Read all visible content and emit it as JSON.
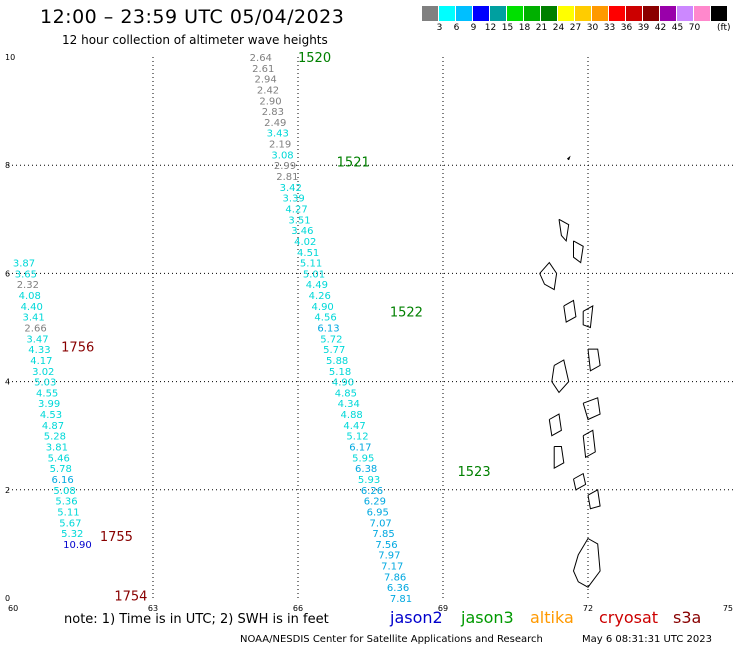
{
  "header": {
    "title": "12:00 – 23:59 UTC 05/04/2023",
    "subtitle": "12 hour collection of altimeter wave heights"
  },
  "color_scale": {
    "unit": "(ft)",
    "swatches": [
      {
        "color": "#808080",
        "label": ""
      },
      {
        "color": "#00ffff",
        "label": "3"
      },
      {
        "color": "#00bfff",
        "label": "6"
      },
      {
        "color": "#0000ff",
        "label": "9"
      },
      {
        "color": "#00a0a0",
        "label": "12"
      },
      {
        "color": "#00e000",
        "label": "15"
      },
      {
        "color": "#00b000",
        "label": "18"
      },
      {
        "color": "#008000",
        "label": "21"
      },
      {
        "color": "#ffff00",
        "label": "24"
      },
      {
        "color": "#ffcc00",
        "label": "27"
      },
      {
        "color": "#ff9900",
        "label": "30"
      },
      {
        "color": "#ff0000",
        "label": "33"
      },
      {
        "color": "#cc0000",
        "label": "36"
      },
      {
        "color": "#8b0000",
        "label": "39"
      },
      {
        "color": "#9900aa",
        "label": "42"
      },
      {
        "color": "#cc88ff",
        "label": "45"
      },
      {
        "color": "#ff88cc",
        "label": "70"
      },
      {
        "color": "#000000",
        "label": ""
      }
    ]
  },
  "footer": {
    "note": "note:  1) Time is in UTC;  2) SWH is in feet",
    "satellites": [
      {
        "name": "jason2",
        "color": "#0000cc"
      },
      {
        "name": "jason3",
        "color": "#009900"
      },
      {
        "name": "altika",
        "color": "#ff9900"
      },
      {
        "name": "cryosat",
        "color": "#cc0000"
      },
      {
        "name": "s3a",
        "color": "#880000"
      }
    ],
    "credit": "NOAA/NESDIS Center for Satellite Applications and Research",
    "generated": "May  6 08:31:31 UTC 2023"
  },
  "chart_data": {
    "type": "scatter",
    "title": "12:00 – 23:59 UTC 05/04/2023",
    "xlim": [
      60,
      75
    ],
    "ylim": [
      0,
      10
    ],
    "x_ticks": [
      "60",
      "63",
      "66",
      "69",
      "72",
      "75"
    ],
    "y_ticks": [
      "0",
      "2",
      "4",
      "6",
      "8",
      "10"
    ],
    "grid": true,
    "series": [
      {
        "name": "jason3",
        "color": "#008000",
        "time_labels": [
          {
            "text": "1520",
            "x": 66.0,
            "y": 10.0
          },
          {
            "text": "1521",
            "x": 66.8,
            "y": 8.07
          },
          {
            "text": "1522",
            "x": 67.9,
            "y": 5.3
          },
          {
            "text": "1523",
            "x": 69.3,
            "y": 2.35
          }
        ],
        "points": [
          {
            "v": "2.64",
            "x": 65.0,
            "y": 10.0,
            "c": "#808080"
          },
          {
            "v": "2.61",
            "x": 65.05,
            "y": 9.8,
            "c": "#808080"
          },
          {
            "v": "2.94",
            "x": 65.1,
            "y": 9.6,
            "c": "#808080"
          },
          {
            "v": "2.42",
            "x": 65.15,
            "y": 9.4,
            "c": "#808080"
          },
          {
            "v": "2.90",
            "x": 65.2,
            "y": 9.2,
            "c": "#808080"
          },
          {
            "v": "2.83",
            "x": 65.25,
            "y": 9.0,
            "c": "#808080"
          },
          {
            "v": "2.49",
            "x": 65.3,
            "y": 8.8,
            "c": "#808080"
          },
          {
            "v": "3.43",
            "x": 65.35,
            "y": 8.6,
            "c": "#00d8d8"
          },
          {
            "v": "2.19",
            "x": 65.4,
            "y": 8.4,
            "c": "#808080"
          },
          {
            "v": "3.08",
            "x": 65.45,
            "y": 8.2,
            "c": "#00d8d8"
          },
          {
            "v": "2.99",
            "x": 65.5,
            "y": 8.0,
            "c": "#808080"
          },
          {
            "v": "2.81",
            "x": 65.55,
            "y": 7.8,
            "c": "#808080"
          },
          {
            "v": "3.42",
            "x": 65.62,
            "y": 7.6,
            "c": "#00d8d8"
          },
          {
            "v": "3.39",
            "x": 65.68,
            "y": 7.4,
            "c": "#00d8d8"
          },
          {
            "v": "4.27",
            "x": 65.74,
            "y": 7.2,
            "c": "#00d8d8"
          },
          {
            "v": "3.51",
            "x": 65.8,
            "y": 7.0,
            "c": "#00d8d8"
          },
          {
            "v": "3.46",
            "x": 65.86,
            "y": 6.8,
            "c": "#00d8d8"
          },
          {
            "v": "4.02",
            "x": 65.92,
            "y": 6.6,
            "c": "#00d8d8"
          },
          {
            "v": "4.51",
            "x": 65.98,
            "y": 6.4,
            "c": "#00d8d8"
          },
          {
            "v": "5.11",
            "x": 66.04,
            "y": 6.2,
            "c": "#00d8d8"
          },
          {
            "v": "5.01",
            "x": 66.1,
            "y": 6.0,
            "c": "#00d8d8"
          },
          {
            "v": "4.49",
            "x": 66.16,
            "y": 5.8,
            "c": "#00d8d8"
          },
          {
            "v": "4.26",
            "x": 66.22,
            "y": 5.6,
            "c": "#00d8d8"
          },
          {
            "v": "4.90",
            "x": 66.28,
            "y": 5.4,
            "c": "#00d8d8"
          },
          {
            "v": "4.56",
            "x": 66.34,
            "y": 5.2,
            "c": "#00d8d8"
          },
          {
            "v": "6.13",
            "x": 66.4,
            "y": 5.0,
            "c": "#00a8e0"
          },
          {
            "v": "5.72",
            "x": 66.46,
            "y": 4.8,
            "c": "#00d8d8"
          },
          {
            "v": "5.77",
            "x": 66.52,
            "y": 4.6,
            "c": "#00d8d8"
          },
          {
            "v": "5.88",
            "x": 66.58,
            "y": 4.4,
            "c": "#00d8d8"
          },
          {
            "v": "5.18",
            "x": 66.64,
            "y": 4.2,
            "c": "#00d8d8"
          },
          {
            "v": "4.90",
            "x": 66.7,
            "y": 4.0,
            "c": "#00d8d8"
          },
          {
            "v": "4.85",
            "x": 66.76,
            "y": 3.8,
            "c": "#00d8d8"
          },
          {
            "v": "4.34",
            "x": 66.82,
            "y": 3.6,
            "c": "#00d8d8"
          },
          {
            "v": "4.88",
            "x": 66.88,
            "y": 3.4,
            "c": "#00d8d8"
          },
          {
            "v": "4.47",
            "x": 66.94,
            "y": 3.2,
            "c": "#00d8d8"
          },
          {
            "v": "5.12",
            "x": 67.0,
            "y": 3.0,
            "c": "#00d8d8"
          },
          {
            "v": "6.17",
            "x": 67.06,
            "y": 2.8,
            "c": "#00a8e0"
          },
          {
            "v": "5.95",
            "x": 67.12,
            "y": 2.6,
            "c": "#00d8d8"
          },
          {
            "v": "6.38",
            "x": 67.18,
            "y": 2.4,
            "c": "#00a8e0"
          },
          {
            "v": "5.93",
            "x": 67.24,
            "y": 2.2,
            "c": "#00d8d8"
          },
          {
            "v": "6.26",
            "x": 67.3,
            "y": 2.0,
            "c": "#00a8e0"
          },
          {
            "v": "6.29",
            "x": 67.36,
            "y": 1.8,
            "c": "#00a8e0"
          },
          {
            "v": "6.95",
            "x": 67.42,
            "y": 1.6,
            "c": "#00a8e0"
          },
          {
            "v": "7.07",
            "x": 67.48,
            "y": 1.4,
            "c": "#00a8e0"
          },
          {
            "v": "7.85",
            "x": 67.54,
            "y": 1.2,
            "c": "#00a8e0"
          },
          {
            "v": "7.56",
            "x": 67.6,
            "y": 1.0,
            "c": "#00a8e0"
          },
          {
            "v": "7.97",
            "x": 67.66,
            "y": 0.8,
            "c": "#00a8e0"
          },
          {
            "v": "7.17",
            "x": 67.72,
            "y": 0.6,
            "c": "#00a8e0"
          },
          {
            "v": "7.86",
            "x": 67.78,
            "y": 0.4,
            "c": "#00a8e0"
          },
          {
            "v": "6.36",
            "x": 67.84,
            "y": 0.2,
            "c": "#00a8e0"
          },
          {
            "v": "7.81",
            "x": 67.9,
            "y": 0.0,
            "c": "#00a8e0"
          }
        ]
      },
      {
        "name": "s3a",
        "color": "#880000",
        "time_labels": [
          {
            "text": "1756",
            "x": 61.1,
            "y": 4.65
          },
          {
            "text": "1755",
            "x": 61.9,
            "y": 1.15
          },
          {
            "text": "1754",
            "x": 62.2,
            "y": 0.05
          }
        ],
        "points": [
          {
            "v": "3.87",
            "x": 60.1,
            "y": 6.2,
            "c": "#00d8d8"
          },
          {
            "v": "3.65",
            "x": 60.14,
            "y": 6.0,
            "c": "#00d8d8"
          },
          {
            "v": "2.32",
            "x": 60.18,
            "y": 5.8,
            "c": "#808080"
          },
          {
            "v": "4.08",
            "x": 60.22,
            "y": 5.6,
            "c": "#00d8d8"
          },
          {
            "v": "4.40",
            "x": 60.26,
            "y": 5.4,
            "c": "#00d8d8"
          },
          {
            "v": "3.41",
            "x": 60.3,
            "y": 5.2,
            "c": "#00d8d8"
          },
          {
            "v": "2.66",
            "x": 60.34,
            "y": 5.0,
            "c": "#808080"
          },
          {
            "v": "3.47",
            "x": 60.38,
            "y": 4.8,
            "c": "#00d8d8"
          },
          {
            "v": "4.33",
            "x": 60.42,
            "y": 4.6,
            "c": "#00d8d8"
          },
          {
            "v": "4.17",
            "x": 60.46,
            "y": 4.4,
            "c": "#00d8d8"
          },
          {
            "v": "3.02",
            "x": 60.5,
            "y": 4.2,
            "c": "#00d8d8"
          },
          {
            "v": "5.03",
            "x": 60.54,
            "y": 4.0,
            "c": "#00d8d8"
          },
          {
            "v": "4.55",
            "x": 60.58,
            "y": 3.8,
            "c": "#00d8d8"
          },
          {
            "v": "3.99",
            "x": 60.62,
            "y": 3.6,
            "c": "#00d8d8"
          },
          {
            "v": "4.53",
            "x": 60.66,
            "y": 3.4,
            "c": "#00d8d8"
          },
          {
            "v": "4.87",
            "x": 60.7,
            "y": 3.2,
            "c": "#00d8d8"
          },
          {
            "v": "5.28",
            "x": 60.74,
            "y": 3.0,
            "c": "#00d8d8"
          },
          {
            "v": "3.81",
            "x": 60.78,
            "y": 2.8,
            "c": "#00d8d8"
          },
          {
            "v": "5.46",
            "x": 60.82,
            "y": 2.6,
            "c": "#00d8d8"
          },
          {
            "v": "5.78",
            "x": 60.86,
            "y": 2.4,
            "c": "#00d8d8"
          },
          {
            "v": "6.16",
            "x": 60.9,
            "y": 2.2,
            "c": "#00a8e0"
          },
          {
            "v": "5.08",
            "x": 60.94,
            "y": 2.0,
            "c": "#00d8d8"
          },
          {
            "v": "5.36",
            "x": 60.98,
            "y": 1.8,
            "c": "#00d8d8"
          },
          {
            "v": "5.11",
            "x": 61.02,
            "y": 1.6,
            "c": "#00d8d8"
          },
          {
            "v": "5.67",
            "x": 61.06,
            "y": 1.4,
            "c": "#00d8d8"
          },
          {
            "v": "5.32",
            "x": 61.1,
            "y": 1.2,
            "c": "#00d8d8"
          },
          {
            "v": "10.90",
            "x": 61.14,
            "y": 1.0,
            "c": "#0000cc"
          }
        ]
      }
    ],
    "map": {
      "description_key": "coastline",
      "islands": [
        [
          [
            71.6,
            8.1
          ],
          [
            71.62,
            8.15
          ],
          [
            71.58,
            8.12
          ],
          [
            71.6,
            8.1
          ]
        ],
        [
          [
            71.4,
            7.0
          ],
          [
            71.6,
            6.9
          ],
          [
            71.55,
            6.6
          ],
          [
            71.45,
            6.7
          ],
          [
            71.4,
            7.0
          ]
        ],
        [
          [
            71.0,
            6.0
          ],
          [
            71.2,
            6.2
          ],
          [
            71.35,
            6.0
          ],
          [
            71.3,
            5.7
          ],
          [
            71.1,
            5.8
          ],
          [
            71.0,
            6.0
          ]
        ],
        [
          [
            71.7,
            6.6
          ],
          [
            71.9,
            6.5
          ],
          [
            71.85,
            6.2
          ],
          [
            71.7,
            6.3
          ],
          [
            71.7,
            6.6
          ]
        ],
        [
          [
            71.5,
            5.4
          ],
          [
            71.7,
            5.5
          ],
          [
            71.75,
            5.2
          ],
          [
            71.55,
            5.1
          ],
          [
            71.5,
            5.4
          ]
        ],
        [
          [
            71.9,
            5.3
          ],
          [
            72.1,
            5.4
          ],
          [
            72.05,
            5.0
          ],
          [
            71.9,
            5.05
          ],
          [
            71.9,
            5.3
          ]
        ],
        [
          [
            71.3,
            4.3
          ],
          [
            71.5,
            4.4
          ],
          [
            71.6,
            4.0
          ],
          [
            71.4,
            3.8
          ],
          [
            71.25,
            4.0
          ],
          [
            71.3,
            4.3
          ]
        ],
        [
          [
            72.0,
            4.6
          ],
          [
            72.2,
            4.6
          ],
          [
            72.25,
            4.3
          ],
          [
            72.05,
            4.2
          ],
          [
            72.0,
            4.6
          ]
        ],
        [
          [
            71.9,
            3.6
          ],
          [
            72.2,
            3.7
          ],
          [
            72.25,
            3.4
          ],
          [
            72.0,
            3.3
          ],
          [
            71.9,
            3.6
          ]
        ],
        [
          [
            71.2,
            3.3
          ],
          [
            71.4,
            3.4
          ],
          [
            71.45,
            3.1
          ],
          [
            71.25,
            3.0
          ],
          [
            71.2,
            3.3
          ]
        ],
        [
          [
            71.3,
            2.8
          ],
          [
            71.45,
            2.8
          ],
          [
            71.5,
            2.5
          ],
          [
            71.3,
            2.4
          ],
          [
            71.3,
            2.8
          ]
        ],
        [
          [
            71.9,
            3.0
          ],
          [
            72.1,
            3.1
          ],
          [
            72.15,
            2.7
          ],
          [
            71.95,
            2.6
          ],
          [
            71.9,
            3.0
          ]
        ],
        [
          [
            71.7,
            2.2
          ],
          [
            71.9,
            2.3
          ],
          [
            71.95,
            2.1
          ],
          [
            71.75,
            2.0
          ],
          [
            71.7,
            2.2
          ]
        ],
        [
          [
            72.0,
            1.9
          ],
          [
            72.2,
            2.0
          ],
          [
            72.25,
            1.7
          ],
          [
            72.05,
            1.65
          ],
          [
            72.0,
            1.9
          ]
        ],
        [
          [
            71.8,
            0.8
          ],
          [
            72.0,
            1.1
          ],
          [
            72.2,
            1.0
          ],
          [
            72.25,
            0.5
          ],
          [
            72.0,
            0.2
          ],
          [
            71.8,
            0.3
          ],
          [
            71.7,
            0.5
          ],
          [
            71.8,
            0.8
          ]
        ]
      ]
    }
  }
}
